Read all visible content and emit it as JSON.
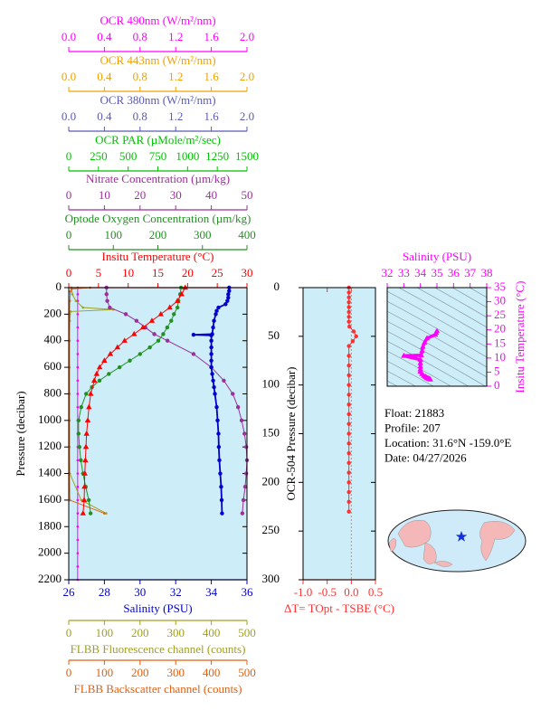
{
  "chart_data": [
    {
      "type": "profile",
      "ylabel": "Pressure (decibar)",
      "ylim": [
        2200,
        0
      ],
      "yticks": [
        0,
        200,
        400,
        600,
        800,
        1000,
        1200,
        1400,
        1600,
        1800,
        2000,
        2200
      ],
      "background": "#cdeef8",
      "axes": [
        {
          "label": "OCR 490nm (W/m²/nm)",
          "color": "#ff00ff",
          "position": "top",
          "xlim": [
            0,
            2
          ],
          "xticks": [
            {
              "value": 0,
              "label": "0.0"
            },
            0.4,
            0.8,
            1.2,
            1.6,
            {
              "value": 2,
              "label": "2.0"
            }
          ]
        },
        {
          "label": "OCR 443nm (W/m²/nm)",
          "color": "#f0a000",
          "position": "top",
          "xlim": [
            0,
            2
          ],
          "xticks": [
            {
              "value": 0,
              "label": "0.0"
            },
            0.4,
            0.8,
            1.2,
            1.6,
            {
              "value": 2,
              "label": "2.0"
            }
          ]
        },
        {
          "label": "OCR 380nm (W/m²/nm)",
          "color": "#5a5ab4",
          "position": "top",
          "xlim": [
            0,
            2
          ],
          "xticks": [
            {
              "value": 0,
              "label": "0.0"
            },
            0.4,
            0.8,
            1.2,
            1.6,
            {
              "value": 2,
              "label": "2.0"
            }
          ]
        },
        {
          "label": "OCR PAR (µMole/m²/sec)",
          "color": "#00c000",
          "position": "top",
          "xlim": [
            0,
            1500
          ],
          "xticks": [
            0,
            250,
            500,
            750,
            1000,
            1250,
            1500
          ]
        },
        {
          "label": "Nitrate Concentration (µm/kg)",
          "color": "#9a309a",
          "position": "top",
          "xlim": [
            0,
            50
          ],
          "xticks": [
            0,
            10,
            20,
            30,
            40,
            50
          ]
        },
        {
          "label": "Optode Oxygen Concentration (µm/kg)",
          "color": "#229022",
          "position": "top",
          "xlim": [
            0,
            400
          ],
          "xticks": [
            0,
            100,
            200,
            300,
            400
          ]
        },
        {
          "label": "Insitu Temperature (°C)",
          "color": "#ff0000",
          "position": "top",
          "xlim": [
            0,
            30
          ],
          "xticks": [
            0,
            5,
            10,
            15,
            20,
            25,
            30
          ]
        },
        {
          "label": "Salinity (PSU)",
          "color": "#0000cc",
          "position": "bottom",
          "xlim": [
            26,
            36
          ],
          "xticks": [
            26,
            28,
            30,
            32,
            34,
            36
          ]
        },
        {
          "label": "FLBB Fluorescence channel (counts)",
          "color": "#a0a020",
          "position": "bottom",
          "xlim": [
            0,
            500
          ],
          "xticks": [
            0,
            100,
            200,
            300,
            400,
            500
          ]
        },
        {
          "label": "FLBB Backscatter channel (counts)",
          "color": "#e06010",
          "position": "bottom",
          "xlim": [
            0,
            500
          ],
          "xticks": [
            0,
            100,
            200,
            300,
            400,
            500
          ]
        }
      ],
      "series": [
        {
          "axis": 0,
          "marker": "dot",
          "pressure": [
            0,
            50,
            100,
            200,
            300,
            400,
            500,
            600,
            700,
            800,
            900,
            1000,
            1100,
            1200,
            1300,
            1400,
            1500,
            1600,
            1700,
            1800,
            1900,
            2000,
            2100,
            2200
          ],
          "values": [
            0.1,
            0.1,
            0.1,
            0.1,
            0.1,
            0.1,
            0.1,
            0.1,
            0.1,
            0.1,
            0.1,
            0.1,
            0.1,
            0.1,
            0.1,
            0.1,
            0.1,
            0.1,
            0.1,
            0.1,
            0.1,
            0.1,
            0.1,
            0.1
          ]
        },
        {
          "axis": 8,
          "marker": "dot",
          "pressure": [
            0,
            50,
            100,
            150,
            165,
            180,
            250,
            400,
            600,
            800,
            1000,
            1200,
            1400,
            1600,
            1700
          ],
          "values": [
            8,
            10,
            20,
            40,
            125,
            5,
            3,
            2,
            2,
            2,
            2,
            2,
            3,
            35,
            105
          ]
        },
        {
          "axis": 9,
          "marker": "dot",
          "pressure": [
            0,
            10,
            30,
            100,
            200,
            400,
            600,
            800,
            1000,
            1200,
            1400,
            1600,
            1700
          ],
          "values": [
            60,
            8,
            4,
            3,
            2,
            2,
            2,
            2,
            2,
            2,
            2,
            3,
            100
          ]
        },
        {
          "axis": 4,
          "marker": "circle",
          "pressure": [
            0,
            50,
            100,
            150,
            200,
            250,
            300,
            350,
            400,
            500,
            600,
            700,
            800,
            900,
            1000,
            1100,
            1200,
            1300,
            1400,
            1500,
            1600,
            1700
          ],
          "values": [
            10.6,
            10.6,
            10.8,
            11.5,
            16,
            19,
            21.5,
            24,
            27.7,
            35,
            40,
            43.5,
            46,
            47.5,
            48.5,
            49.3,
            49.8,
            50,
            49.8,
            49.5,
            49,
            48.7
          ]
        },
        {
          "axis": 5,
          "marker": "circle",
          "pressure": [
            0,
            50,
            100,
            150,
            200,
            250,
            300,
            350,
            400,
            450,
            500,
            550,
            600,
            650,
            700,
            750,
            800,
            900,
            1000,
            1100,
            1200,
            1300,
            1400,
            1500,
            1600,
            1700
          ],
          "values": [
            252,
            250,
            246,
            244,
            236,
            230,
            221,
            212,
            201,
            182,
            160,
            137,
            114,
            90,
            69,
            52,
            39,
            28,
            22,
            22,
            24,
            27,
            32,
            38,
            45,
            49
          ]
        },
        {
          "axis": 6,
          "marker": "triangle",
          "pressure": [
            0,
            50,
            100,
            150,
            200,
            250,
            300,
            350,
            400,
            450,
            500,
            550,
            600,
            650,
            700,
            800,
            900,
            1000,
            1100,
            1200,
            1300,
            1400,
            1500,
            1600,
            1700
          ],
          "values": [
            19.6,
            19.0,
            18.3,
            17.0,
            15.5,
            14.0,
            12.5,
            11.0,
            9.4,
            8.2,
            7.0,
            6.0,
            5.2,
            4.7,
            4.3,
            3.7,
            3.4,
            3.2,
            3.0,
            2.9,
            2.8,
            2.7,
            2.65,
            2.6,
            2.4
          ]
        },
        {
          "axis": 7,
          "marker": "circle",
          "pressure": [
            0,
            25,
            50,
            75,
            100,
            125,
            150,
            175,
            200,
            250,
            300,
            350,
            355,
            360,
            400,
            450,
            500,
            550,
            600,
            650,
            700,
            750,
            800,
            900,
            1000,
            1100,
            1200,
            1300,
            1400,
            1500,
            1600,
            1700
          ],
          "values": [
            35.0,
            35.0,
            34.95,
            34.95,
            34.9,
            34.8,
            34.4,
            34.3,
            34.25,
            34.15,
            34.1,
            34.05,
            33.0,
            34.0,
            34.0,
            34.0,
            34.0,
            34.0,
            34.0,
            34.05,
            34.1,
            34.15,
            34.2,
            34.3,
            34.35,
            34.4,
            34.42,
            34.45,
            34.5,
            34.55,
            34.58,
            34.6
          ]
        }
      ]
    },
    {
      "type": "profile",
      "ylabel": "OCR-504 Pressure (decibar)",
      "ylim": [
        300,
        0
      ],
      "yticks": [
        0,
        50,
        100,
        150,
        200,
        250,
        300
      ],
      "background": "#cdeef8",
      "zero_line": true,
      "axes": [
        {
          "label": "ΔT= TOpt - TSBE (°C)",
          "color": "#ff3030",
          "position": "bottom",
          "xlim": [
            -1,
            0.5
          ],
          "xticks": [
            {
              "value": -1,
              "label": "-1.0"
            },
            {
              "value": -0.5,
              "label": "-0.5"
            },
            {
              "value": 0,
              "label": "0.0"
            },
            0.5
          ]
        }
      ],
      "series": [
        {
          "axis": 0,
          "marker": "circle",
          "pressure": [
            0,
            5,
            10,
            15,
            20,
            25,
            30,
            35,
            40,
            45,
            50,
            55,
            60,
            70,
            80,
            90,
            100,
            110,
            120,
            130,
            140,
            150,
            160,
            170,
            180,
            190,
            200,
            210,
            220,
            230
          ],
          "values": [
            -0.05,
            -0.05,
            -0.05,
            -0.05,
            -0.05,
            -0.05,
            -0.05,
            -0.05,
            -0.04,
            0.05,
            0.1,
            0.03,
            -0.05,
            -0.05,
            -0.05,
            -0.05,
            -0.05,
            -0.05,
            -0.05,
            -0.05,
            -0.05,
            -0.05,
            -0.05,
            -0.05,
            -0.05,
            -0.05,
            -0.05,
            -0.05,
            -0.05,
            -0.05
          ]
        }
      ]
    },
    {
      "type": "scatter",
      "title": "Salinity (PSU)",
      "ylabel": "Insitu Temperature (°C)",
      "color": "#ff00ff",
      "xlim": [
        32,
        38
      ],
      "xticks": [
        32,
        33,
        34,
        35,
        36,
        37,
        38
      ],
      "ylim": [
        0,
        35
      ],
      "yticks": [
        0,
        5,
        10,
        15,
        20,
        25,
        30,
        35
      ],
      "x": [
        35.0,
        34.95,
        34.9,
        34.4,
        34.25,
        34.15,
        34.1,
        34.05,
        33.0,
        34.0,
        34.0,
        34.0,
        34.0,
        34.0,
        34.1,
        34.2,
        34.3,
        34.35,
        34.4,
        34.45,
        34.5,
        34.55,
        34.6
      ],
      "values": [
        19.6,
        19.0,
        18.3,
        17.0,
        15.5,
        14.0,
        12.5,
        11.0,
        10.8,
        9.4,
        8.2,
        7.0,
        6.0,
        5.2,
        4.3,
        3.7,
        3.4,
        3.2,
        2.9,
        2.8,
        2.7,
        2.6,
        2.4
      ]
    }
  ],
  "info": [
    "Float:  21883",
    "Profile:  207",
    "Location:  31.6°N  -159.0°E",
    "Date:  04/27/2026"
  ]
}
